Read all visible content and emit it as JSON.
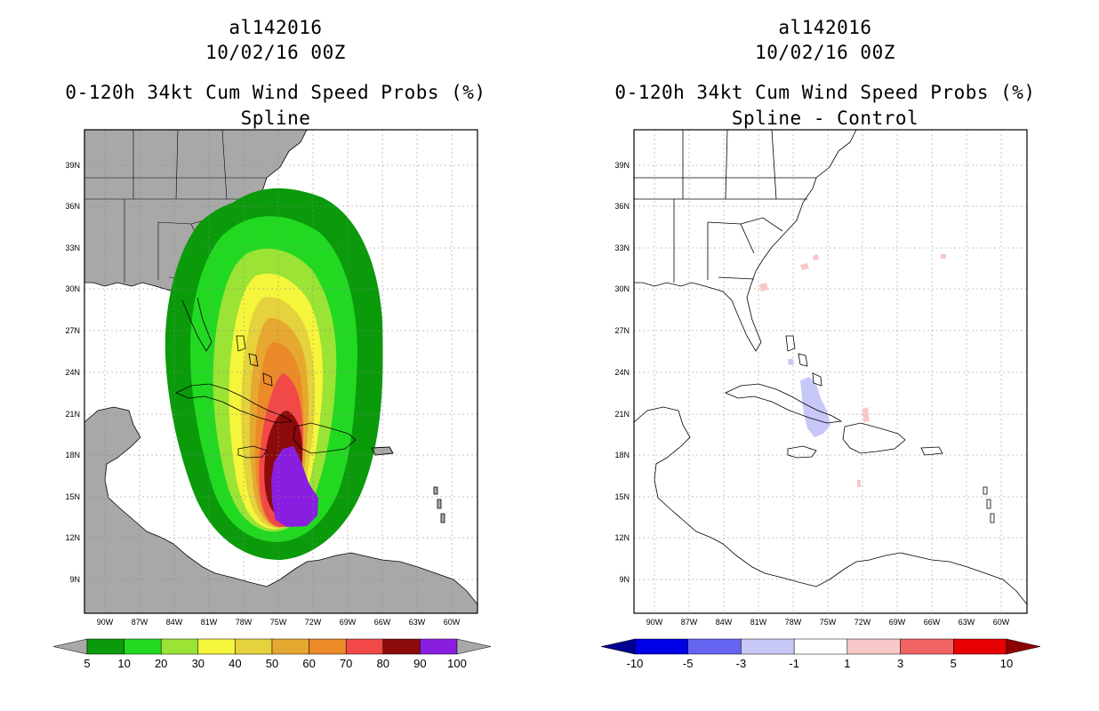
{
  "left_panel": {
    "title_line1": "al142016",
    "title_line2": "10/02/16 00Z",
    "title_line3": "0-120h 34kt Cum Wind Speed Probs (%)",
    "title_line4": "Spline",
    "lat_labels": [
      "39N",
      "36N",
      "33N",
      "30N",
      "27N",
      "24N",
      "21N",
      "18N",
      "15N",
      "12N",
      "9N"
    ],
    "lon_labels": [
      "90W",
      "87W",
      "84W",
      "81W",
      "78W",
      "75W",
      "72W",
      "69W",
      "66W",
      "63W",
      "60W"
    ],
    "colorbar": {
      "labels": [
        "5",
        "10",
        "20",
        "30",
        "40",
        "50",
        "60",
        "70",
        "80",
        "90",
        "100"
      ],
      "colors": [
        "#0a9a0a",
        "#22d922",
        "#9be335",
        "#f5f53b",
        "#e5d23c",
        "#e6a830",
        "#ec8a28",
        "#f24848",
        "#8c0a0a",
        "#8a1ee0"
      ],
      "underflow_color": "#a8a8a8",
      "overflow_color": "#a8a8a8"
    },
    "land_color": "#a8a8a8"
  },
  "right_panel": {
    "title_line1": "al142016",
    "title_line2": "10/02/16 00Z",
    "title_line3": "0-120h 34kt Cum Wind Speed Probs (%)",
    "title_line4": "Spline - Control",
    "lat_labels": [
      "39N",
      "36N",
      "33N",
      "30N",
      "27N",
      "24N",
      "21N",
      "18N",
      "15N",
      "12N",
      "9N"
    ],
    "lon_labels": [
      "90W",
      "87W",
      "84W",
      "81W",
      "78W",
      "75W",
      "72W",
      "69W",
      "66W",
      "63W",
      "60W"
    ],
    "colorbar": {
      "labels": [
        "-10",
        "-5",
        "-3",
        "-1",
        "1",
        "3",
        "5",
        "10"
      ],
      "colors": [
        "#0000e6",
        "#6464f0",
        "#c8c8f8",
        "#ffffff",
        "#f8c8c8",
        "#f06464",
        "#e60000"
      ],
      "underflow_color": "#000090",
      "overflow_color": "#8c0000"
    }
  }
}
